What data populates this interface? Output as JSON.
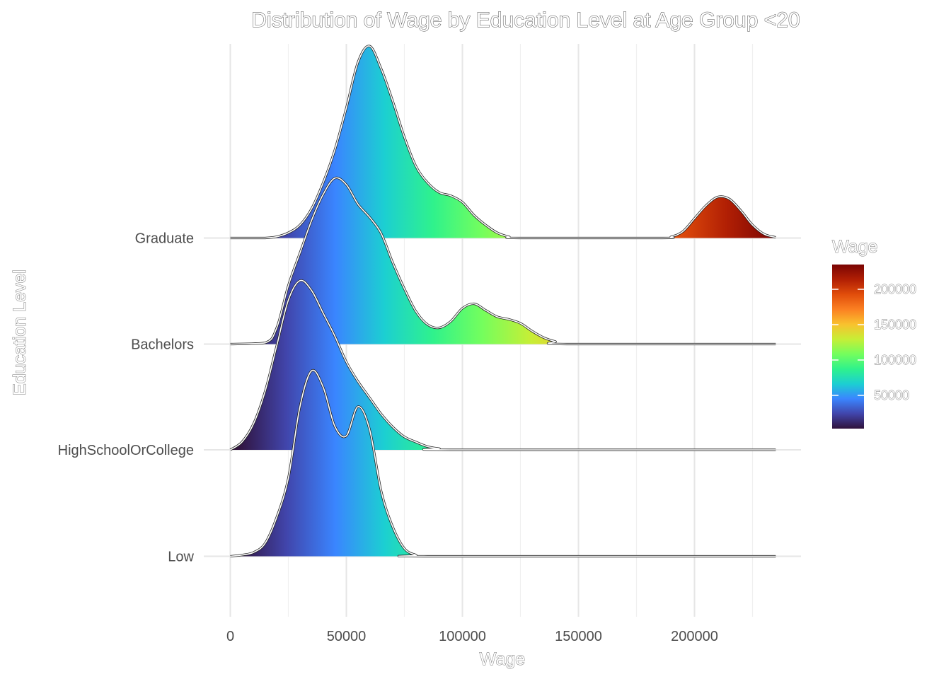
{
  "chart_data": {
    "type": "area",
    "subtype": "ridgeline",
    "title": "Distribution of Wage by Education Level at Age Group <20",
    "xlabel": "Wage",
    "ylabel": "Education Level",
    "xlim": [
      0,
      235000
    ],
    "x_ticks": [
      0,
      50000,
      100000,
      150000,
      200000
    ],
    "x_tick_labels": [
      "0",
      "50000",
      "100000",
      "150000",
      "200000"
    ],
    "categories": [
      "Low",
      "HighSchoolOrCollege",
      "Bachelors",
      "Graduate"
    ],
    "grid": true,
    "legend": {
      "title": "Wage",
      "placement": "right",
      "tick_labels": [
        "50000",
        "100000",
        "150000",
        "200000"
      ],
      "tick_values": [
        50000,
        100000,
        150000,
        200000
      ],
      "range": [
        3000,
        235000
      ]
    },
    "colormap": [
      "#30123b",
      "#4145ab",
      "#3a85ff",
      "#1ccfd2",
      "#2ff28c",
      "#74fe5d",
      "#c7ee36",
      "#f9c12e",
      "#fb8022",
      "#e14d0b",
      "#b11f04",
      "#7a0403"
    ],
    "series": [
      {
        "name": "Low",
        "points": [
          [
            0,
            0
          ],
          [
            5000,
            0.02
          ],
          [
            10000,
            0.06
          ],
          [
            15000,
            0.2
          ],
          [
            20000,
            0.6
          ],
          [
            25000,
            1.2
          ],
          [
            30000,
            2.3
          ],
          [
            35000,
            2.85
          ],
          [
            40000,
            2.6
          ],
          [
            45000,
            2.0
          ],
          [
            50000,
            1.85
          ],
          [
            55000,
            2.3
          ],
          [
            60000,
            1.95
          ],
          [
            65000,
            1.0
          ],
          [
            70000,
            0.45
          ],
          [
            75000,
            0.12
          ],
          [
            80000,
            0.02
          ],
          [
            85000,
            0
          ],
          [
            235000,
            0
          ]
        ]
      },
      {
        "name": "HighSchoolOrCollege",
        "points": [
          [
            0,
            0
          ],
          [
            5000,
            0.12
          ],
          [
            10000,
            0.4
          ],
          [
            15000,
            0.9
          ],
          [
            20000,
            1.6
          ],
          [
            25000,
            2.3
          ],
          [
            30000,
            2.6
          ],
          [
            35000,
            2.45
          ],
          [
            40000,
            2.1
          ],
          [
            45000,
            1.75
          ],
          [
            50000,
            1.35
          ],
          [
            55000,
            1.05
          ],
          [
            60000,
            0.8
          ],
          [
            65000,
            0.55
          ],
          [
            70000,
            0.35
          ],
          [
            75000,
            0.2
          ],
          [
            80000,
            0.12
          ],
          [
            85000,
            0.05
          ],
          [
            90000,
            0.02
          ],
          [
            95000,
            0
          ],
          [
            235000,
            0
          ]
        ]
      },
      {
        "name": "Bachelors",
        "points": [
          [
            0,
            0
          ],
          [
            15000,
            0.02
          ],
          [
            20000,
            0.25
          ],
          [
            25000,
            0.9
          ],
          [
            30000,
            1.4
          ],
          [
            35000,
            1.9
          ],
          [
            40000,
            2.3
          ],
          [
            45000,
            2.55
          ],
          [
            50000,
            2.45
          ],
          [
            55000,
            2.15
          ],
          [
            60000,
            1.95
          ],
          [
            65000,
            1.7
          ],
          [
            70000,
            1.25
          ],
          [
            75000,
            0.85
          ],
          [
            80000,
            0.5
          ],
          [
            85000,
            0.3
          ],
          [
            90000,
            0.25
          ],
          [
            95000,
            0.35
          ],
          [
            100000,
            0.55
          ],
          [
            105000,
            0.62
          ],
          [
            110000,
            0.52
          ],
          [
            115000,
            0.42
          ],
          [
            120000,
            0.38
          ],
          [
            125000,
            0.32
          ],
          [
            130000,
            0.2
          ],
          [
            135000,
            0.1
          ],
          [
            140000,
            0.04
          ],
          [
            145000,
            0
          ],
          [
            235000,
            0
          ]
        ]
      },
      {
        "name": "Graduate",
        "points": [
          [
            0,
            0
          ],
          [
            5000,
            0
          ],
          [
            10000,
            0
          ],
          [
            15000,
            0
          ],
          [
            20000,
            0.02
          ],
          [
            25000,
            0.08
          ],
          [
            30000,
            0.2
          ],
          [
            35000,
            0.45
          ],
          [
            40000,
            0.85
          ],
          [
            45000,
            1.35
          ],
          [
            50000,
            2.0
          ],
          [
            55000,
            2.7
          ],
          [
            60000,
            2.95
          ],
          [
            65000,
            2.6
          ],
          [
            70000,
            2.1
          ],
          [
            75000,
            1.55
          ],
          [
            80000,
            1.1
          ],
          [
            85000,
            0.85
          ],
          [
            90000,
            0.7
          ],
          [
            95000,
            0.65
          ],
          [
            100000,
            0.55
          ],
          [
            105000,
            0.35
          ],
          [
            110000,
            0.2
          ],
          [
            115000,
            0.08
          ],
          [
            120000,
            0.02
          ],
          [
            125000,
            0
          ],
          [
            185000,
            0
          ],
          [
            190000,
            0.02
          ],
          [
            195000,
            0.1
          ],
          [
            200000,
            0.3
          ],
          [
            205000,
            0.5
          ],
          [
            210000,
            0.63
          ],
          [
            215000,
            0.6
          ],
          [
            220000,
            0.42
          ],
          [
            225000,
            0.2
          ],
          [
            230000,
            0.06
          ],
          [
            235000,
            0.01
          ]
        ]
      }
    ]
  }
}
